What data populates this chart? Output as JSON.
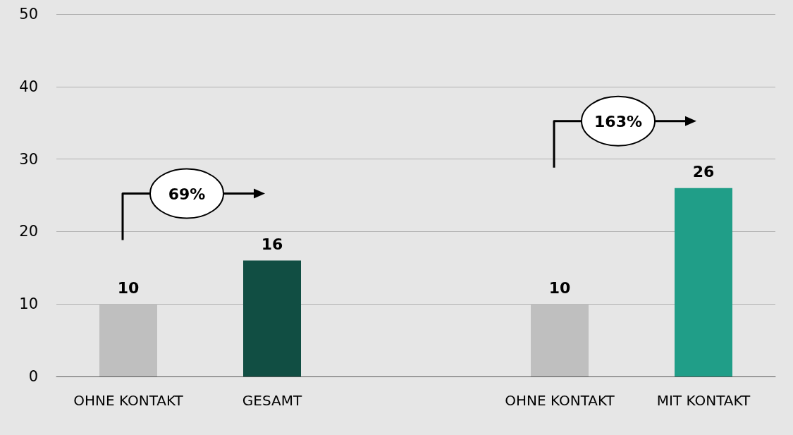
{
  "chart_data": {
    "type": "bar",
    "categories": [
      "OHNE KONTAKT",
      "GESAMT",
      null,
      "OHNE KONTAKT",
      "MIT KONTAKT"
    ],
    "values": [
      10,
      16,
      null,
      10,
      26
    ],
    "colors": [
      "#bfbfbf",
      "#114e43",
      "#bfbfbf",
      "#bfbfbf",
      "#209e88"
    ],
    "ylim": [
      0,
      50
    ],
    "yticks": [
      0,
      10,
      20,
      30,
      40,
      50
    ],
    "grid": "y",
    "data_labels": true,
    "annotations": [
      "69%",
      "163%"
    ]
  }
}
